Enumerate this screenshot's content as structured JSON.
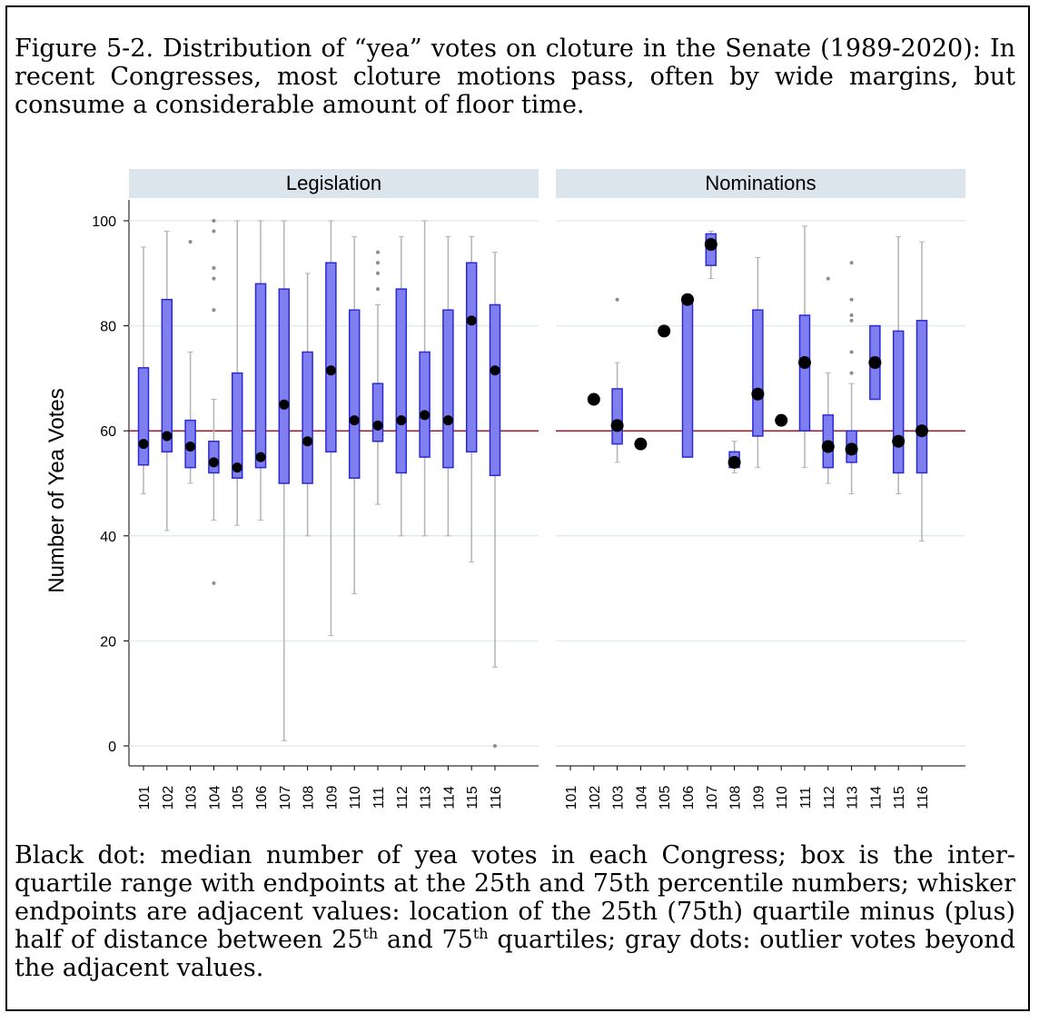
{
  "figure": {
    "title_line1": "Figure 5-2. Distribution of “yea” votes on cloture in the Senate (1989-2020):",
    "title_line2": "In recent Congresses, most cloture motions pass, often by wide margins, but consume a considerable amount of floor time.",
    "note_part1": "Black dot: median number of yea votes in each Congress; box is the inter-quartile range with endpoints at the 25th and 75th percentile numbers; whisker endpoints are adjacent values: location of the 25th (75th) quartile minus (plus) half of distance between 25",
    "note_sup1": "th",
    "note_part2": " and 75",
    "note_sup2": "th",
    "note_part3": " quartiles; gray dots: outlier votes beyond the adjacent values."
  },
  "colors": {
    "box_fill": "#7f7ff0",
    "box_stroke": "#2a2ad6",
    "median": "#000000",
    "whisker": "#b3b3b3",
    "outlier": "#8c8c8c",
    "reference_line": "#a3192b",
    "gridline": "#e3ecee",
    "panel_header": "#dbe5eb"
  },
  "chart_data": {
    "type": "box",
    "ylabel": "Number of Yea Votes",
    "xlabel": "",
    "ylim": [
      0,
      100
    ],
    "yticks": [
      0,
      20,
      40,
      60,
      80,
      100
    ],
    "reference_line": 60,
    "grid": true,
    "categories": [
      "101",
      "102",
      "103",
      "104",
      "105",
      "106",
      "107",
      "108",
      "109",
      "110",
      "111",
      "112",
      "113",
      "114",
      "115",
      "116"
    ],
    "panels": [
      {
        "name": "Legislation",
        "boxes": [
          {
            "congress": "101",
            "q1": 53.5,
            "median": 57.5,
            "q3": 72,
            "whisker_low": 48,
            "whisker_high": 95,
            "outliers": []
          },
          {
            "congress": "102",
            "q1": 56,
            "median": 59,
            "q3": 85,
            "whisker_low": 41,
            "whisker_high": 98,
            "outliers": []
          },
          {
            "congress": "103",
            "q1": 53,
            "median": 57,
            "q3": 62,
            "whisker_low": 50,
            "whisker_high": 75,
            "outliers": [
              96
            ]
          },
          {
            "congress": "104",
            "q1": 52,
            "median": 54,
            "q3": 58,
            "whisker_low": 43,
            "whisker_high": 66,
            "outliers": [
              100,
              98,
              91,
              89,
              83,
              31
            ]
          },
          {
            "congress": "105",
            "q1": 51,
            "median": 53,
            "q3": 71,
            "whisker_low": 42,
            "whisker_high": 100,
            "outliers": []
          },
          {
            "congress": "106",
            "q1": 53,
            "median": 55,
            "q3": 88,
            "whisker_low": 43,
            "whisker_high": 100,
            "outliers": []
          },
          {
            "congress": "107",
            "q1": 50,
            "median": 65,
            "q3": 87,
            "whisker_low": 1,
            "whisker_high": 100,
            "outliers": []
          },
          {
            "congress": "108",
            "q1": 50,
            "median": 58,
            "q3": 75,
            "whisker_low": 40,
            "whisker_high": 90,
            "outliers": []
          },
          {
            "congress": "109",
            "q1": 56,
            "median": 71.5,
            "q3": 92,
            "whisker_low": 21,
            "whisker_high": 100,
            "outliers": []
          },
          {
            "congress": "110",
            "q1": 51,
            "median": 62,
            "q3": 83,
            "whisker_low": 29,
            "whisker_high": 97,
            "outliers": []
          },
          {
            "congress": "111",
            "q1": 58,
            "median": 61,
            "q3": 69,
            "whisker_low": 46,
            "whisker_high": 84,
            "outliers": [
              94,
              92,
              90,
              87
            ]
          },
          {
            "congress": "112",
            "q1": 52,
            "median": 62,
            "q3": 87,
            "whisker_low": 40,
            "whisker_high": 97,
            "outliers": []
          },
          {
            "congress": "113",
            "q1": 55,
            "median": 63,
            "q3": 75,
            "whisker_low": 40,
            "whisker_high": 100,
            "outliers": []
          },
          {
            "congress": "114",
            "q1": 53,
            "median": 62,
            "q3": 83,
            "whisker_low": 40,
            "whisker_high": 97,
            "outliers": []
          },
          {
            "congress": "115",
            "q1": 56,
            "median": 81,
            "q3": 92,
            "whisker_low": 35,
            "whisker_high": 97,
            "outliers": []
          },
          {
            "congress": "116",
            "q1": 51.5,
            "median": 71.5,
            "q3": 84,
            "whisker_low": 15,
            "whisker_high": 94,
            "outliers": [
              0
            ]
          }
        ]
      },
      {
        "name": "Nominations",
        "boxes": [
          {
            "congress": "102",
            "median": 66,
            "outliers": []
          },
          {
            "congress": "103",
            "q1": 57.5,
            "median": 61,
            "q3": 68,
            "whisker_low": 54,
            "whisker_high": 73,
            "outliers": [
              85
            ]
          },
          {
            "congress": "104",
            "median": 57.5,
            "outliers": []
          },
          {
            "congress": "105",
            "median": 79,
            "outliers": []
          },
          {
            "congress": "106",
            "q1": 55,
            "median": 85,
            "q3": 85,
            "outliers": []
          },
          {
            "congress": "107",
            "q1": 91.5,
            "median": 95.5,
            "q3": 97.5,
            "whisker_low": 89,
            "whisker_high": 98,
            "outliers": []
          },
          {
            "congress": "108",
            "q1": 53,
            "median": 54,
            "q3": 56,
            "whisker_low": 52,
            "whisker_high": 58,
            "outliers": []
          },
          {
            "congress": "109",
            "q1": 59,
            "median": 67,
            "q3": 83,
            "whisker_low": 53,
            "whisker_high": 93,
            "outliers": []
          },
          {
            "congress": "110",
            "median": 62,
            "outliers": []
          },
          {
            "congress": "111",
            "q1": 60,
            "median": 73,
            "q3": 82,
            "whisker_low": 53,
            "whisker_high": 99,
            "outliers": []
          },
          {
            "congress": "112",
            "q1": 53,
            "median": 57,
            "q3": 63,
            "whisker_low": 50,
            "whisker_high": 71,
            "outliers": [
              89
            ]
          },
          {
            "congress": "113",
            "q1": 54,
            "median": 56.5,
            "q3": 60,
            "whisker_low": 48,
            "whisker_high": 69,
            "outliers": [
              92,
              85,
              82,
              81,
              75,
              71
            ]
          },
          {
            "congress": "114",
            "q1": 66,
            "median": 73,
            "q3": 80,
            "outliers": []
          },
          {
            "congress": "115",
            "q1": 52,
            "median": 58,
            "q3": 79,
            "whisker_low": 48,
            "whisker_high": 97,
            "outliers": []
          },
          {
            "congress": "116",
            "q1": 52,
            "median": 60,
            "q3": 81,
            "whisker_low": 39,
            "whisker_high": 96,
            "outliers": []
          }
        ]
      }
    ]
  }
}
